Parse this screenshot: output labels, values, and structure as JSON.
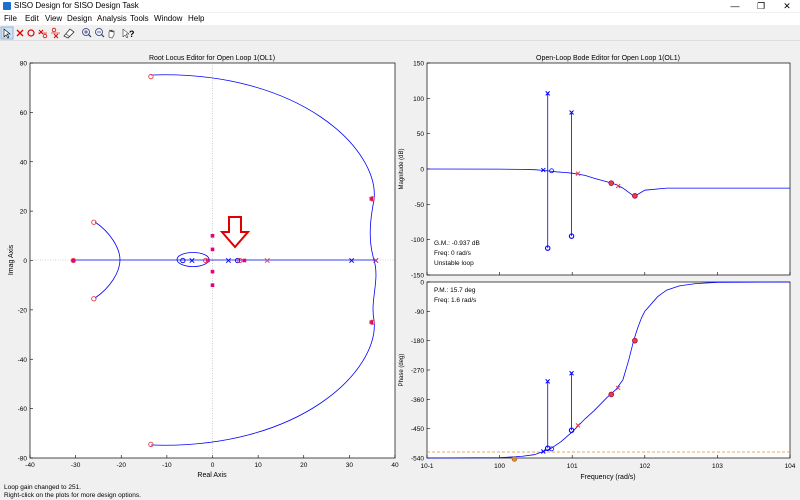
{
  "window": {
    "title": "SISO Design for SISO Design Task",
    "minimize": "—",
    "restore": "❐",
    "close": "✕"
  },
  "menu": [
    "File",
    "Edit",
    "View",
    "Design",
    "Analysis",
    "Tools",
    "Window",
    "Help"
  ],
  "toolbar": {
    "icons": [
      "pointer-icon",
      "add-pole-icon",
      "add-zero-icon",
      "add-lead-icon",
      "add-lag-icon",
      "eraser-icon",
      "zoom-in-icon",
      "zoom-out-icon",
      "pan-icon",
      "whats-this-icon"
    ]
  },
  "status": {
    "line1": "Loop gain changed to 251.",
    "line2": "Right-click on the plots for more design options."
  },
  "colors": {
    "locus": "#0000ff",
    "closed_loop": "#e6007e",
    "open_zero": "#e0404f",
    "axis": "#000000"
  },
  "chart_data": [
    {
      "type": "scatter",
      "title": "Root Locus Editor for Open Loop 1(OL1)",
      "xlabel": "Real Axis",
      "ylabel": "Imag Axis",
      "xlim": [
        -40,
        40
      ],
      "ylim": [
        -80,
        80
      ],
      "xticks": [
        "-40",
        "-30",
        "-20",
        "-10",
        "0",
        "10",
        "20",
        "30",
        "40"
      ],
      "yticks": [
        "-80",
        "-60",
        "-40",
        "-20",
        "0",
        "20",
        "40",
        "60",
        "80"
      ],
      "open_loop_poles": [
        [
          -4.5,
          0
        ],
        [
          3.5,
          0
        ],
        [
          30.5,
          0
        ],
        [
          35.8,
          0
        ]
      ],
      "open_loop_zeros": [
        [
          -6.5,
          0
        ],
        [
          5.5,
          0
        ]
      ],
      "real_axis_zeros_red": [
        [
          12,
          0
        ],
        [
          35.8,
          0
        ]
      ],
      "closed_loop_poles": [
        [
          -30.5,
          0
        ],
        [
          -1,
          0
        ],
        [
          0,
          10
        ],
        [
          0,
          4.5
        ],
        [
          0,
          -4.5
        ],
        [
          0,
          -10
        ],
        [
          34.8,
          25
        ],
        [
          34.8,
          -25
        ],
        [
          7,
          0
        ]
      ],
      "closed_loop_zeros": [
        [
          -13.5,
          74.5
        ],
        [
          -13.5,
          -74.5
        ],
        [
          -26,
          15.5
        ],
        [
          -26,
          -15.5
        ],
        [
          -30.5,
          0
        ],
        [
          -1.5,
          0
        ],
        [
          6,
          0
        ],
        [
          35,
          25
        ],
        [
          35,
          -25
        ]
      ]
    },
    {
      "type": "line",
      "title": "Open-Loop Bode Editor for Open Loop 1(OL1)",
      "ylabel": "Magnitude (dB)",
      "ylim": [
        -150,
        150
      ],
      "yticks": [
        "150",
        "100",
        "50",
        "0",
        "-50",
        "-100",
        "-150"
      ],
      "annotations": [
        "G.M.: -0.937 dB",
        "Freq: 0 rad/s",
        "Unstable loop"
      ],
      "x": [
        0.1,
        1,
        2,
        3,
        4,
        5,
        6,
        8,
        10,
        15,
        20,
        30,
        40,
        50,
        60,
        70,
        80,
        100,
        200,
        500,
        1000,
        10000
      ],
      "y": [
        0,
        -0.2,
        -0.5,
        -1,
        -2,
        -3,
        -4,
        -5,
        -6,
        -9,
        -13,
        -18,
        -22,
        -27,
        -33,
        -38,
        -36,
        -30,
        -27,
        -27,
        -27,
        -27
      ],
      "notches": [
        {
          "freq": 4.6,
          "top": 107,
          "bottom": -112
        },
        {
          "freq": 9.8,
          "top": 80,
          "bottom": -95
        }
      ]
    },
    {
      "type": "line",
      "ylabel": "Phase (deg)",
      "xlabel": "Frequency (rad/s)",
      "ylim": [
        -540,
        0
      ],
      "yticks": [
        "0",
        "-90",
        "-180",
        "-270",
        "-360",
        "-450",
        "-540"
      ],
      "xticks": [
        "10-1",
        "100",
        "101",
        "102",
        "103",
        "104"
      ],
      "annotations": [
        "P.M.: 15.7 deg",
        "Freq: 1.6 rad/s"
      ],
      "x": [
        0.1,
        1,
        2,
        3,
        4,
        5,
        7,
        10,
        15,
        20,
        30,
        40,
        50,
        60,
        70,
        80,
        90,
        100,
        150,
        200,
        300,
        500,
        1000,
        10000
      ],
      "y": [
        -540,
        -539,
        -535,
        -530,
        -520,
        -512,
        -490,
        -460,
        -420,
        -395,
        -355,
        -330,
        -300,
        -240,
        -180,
        -140,
        -110,
        -90,
        -45,
        -25,
        -12,
        -5,
        -1,
        0
      ],
      "notches": [
        {
          "freq": 4.6,
          "top": -305,
          "bottom": -510
        },
        {
          "freq": 9.8,
          "top": -280,
          "bottom": -455
        }
      ],
      "pm_freq": 1.6,
      "reference_level": -540
    }
  ]
}
